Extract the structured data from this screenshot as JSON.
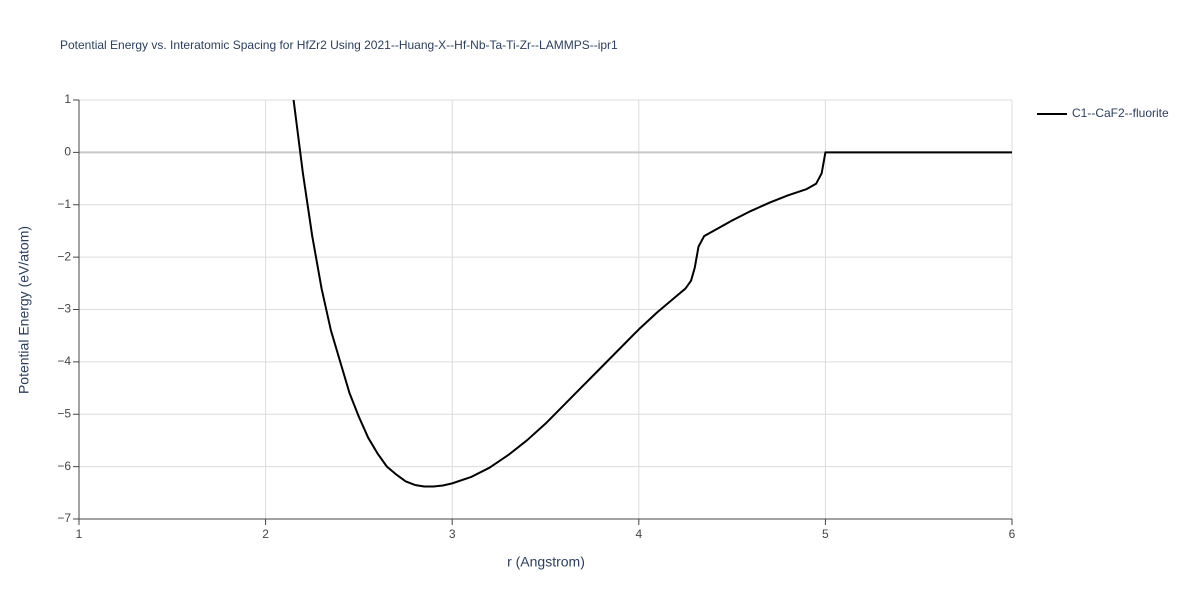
{
  "chart_data": {
    "type": "line",
    "title": "Potential Energy vs. Interatomic Spacing for HfZr2 Using 2021--Huang-X--Hf-Nb-Ta-Ti-Zr--LAMMPS--ipr1",
    "x_label": "r (Angstrom)",
    "y_label": "Potential Energy (eV/atom)",
    "x": [
      2.15,
      2.2,
      2.25,
      2.3,
      2.35,
      2.4,
      2.45,
      2.5,
      2.55,
      2.6,
      2.65,
      2.7,
      2.75,
      2.8,
      2.85,
      2.9,
      2.95,
      3.0,
      3.1,
      3.2,
      3.3,
      3.4,
      3.5,
      3.6,
      3.7,
      3.8,
      3.9,
      4.0,
      4.1,
      4.2,
      4.25,
      4.28,
      4.3,
      4.32,
      4.35,
      4.5,
      4.6,
      4.7,
      4.8,
      4.9,
      4.95,
      4.98,
      5.0,
      5.5,
      6.0
    ],
    "series": [
      {
        "name": "C1--CaF2--fluorite",
        "color": "#000000",
        "values": [
          1.0,
          -0.4,
          -1.6,
          -2.6,
          -3.4,
          -4.0,
          -4.6,
          -5.05,
          -5.45,
          -5.75,
          -6.0,
          -6.15,
          -6.28,
          -6.35,
          -6.38,
          -6.38,
          -6.36,
          -6.32,
          -6.2,
          -6.02,
          -5.78,
          -5.5,
          -5.18,
          -4.82,
          -4.46,
          -4.1,
          -3.74,
          -3.38,
          -3.05,
          -2.75,
          -2.6,
          -2.45,
          -2.2,
          -1.8,
          -1.6,
          -1.3,
          -1.12,
          -0.96,
          -0.82,
          -0.7,
          -0.6,
          -0.4,
          0,
          0,
          0
        ]
      }
    ],
    "xlim": [
      1,
      6
    ],
    "xticks": [
      1,
      2,
      3,
      4,
      5,
      6
    ],
    "ylim": [
      -7,
      1
    ],
    "yticks": [
      {
        "value": -7,
        "label": "−7"
      },
      {
        "value": -6,
        "label": "−6"
      },
      {
        "value": -5,
        "label": "−5"
      },
      {
        "value": -4,
        "label": "−4"
      },
      {
        "value": -3,
        "label": "−3"
      },
      {
        "value": -2,
        "label": "−2"
      },
      {
        "value": -1,
        "label": "−1"
      },
      0,
      1
    ],
    "grid": true,
    "legend": "right"
  }
}
